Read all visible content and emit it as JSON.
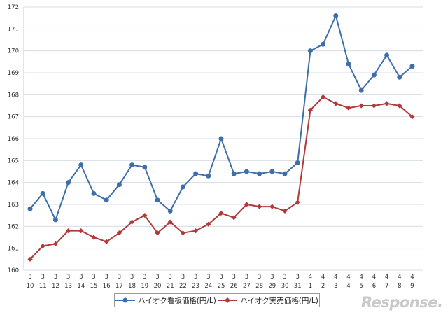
{
  "chart_data": {
    "type": "line",
    "title": "",
    "xlabel": "",
    "ylabel": "",
    "ylim": [
      160,
      172
    ],
    "yticks": [
      160,
      161,
      162,
      163,
      164,
      165,
      166,
      167,
      168,
      169,
      170,
      171,
      172
    ],
    "grid": true,
    "legend_position": "bottom",
    "categories": [
      {
        "month": "3",
        "day": "10"
      },
      {
        "month": "3",
        "day": "11"
      },
      {
        "month": "3",
        "day": "12"
      },
      {
        "month": "3",
        "day": "13"
      },
      {
        "month": "3",
        "day": "14"
      },
      {
        "month": "3",
        "day": "15"
      },
      {
        "month": "3",
        "day": "16"
      },
      {
        "month": "3",
        "day": "17"
      },
      {
        "month": "3",
        "day": "18"
      },
      {
        "month": "3",
        "day": "19"
      },
      {
        "month": "3",
        "day": "20"
      },
      {
        "month": "3",
        "day": "21"
      },
      {
        "month": "3",
        "day": "22"
      },
      {
        "month": "3",
        "day": "23"
      },
      {
        "month": "3",
        "day": "24"
      },
      {
        "month": "3",
        "day": "25"
      },
      {
        "month": "3",
        "day": "26"
      },
      {
        "month": "3",
        "day": "27"
      },
      {
        "month": "3",
        "day": "28"
      },
      {
        "month": "3",
        "day": "29"
      },
      {
        "month": "3",
        "day": "30"
      },
      {
        "month": "3",
        "day": "31"
      },
      {
        "month": "4",
        "day": "1"
      },
      {
        "month": "4",
        "day": "2"
      },
      {
        "month": "4",
        "day": "3"
      },
      {
        "month": "4",
        "day": "4"
      },
      {
        "month": "4",
        "day": "5"
      },
      {
        "month": "4",
        "day": "6"
      },
      {
        "month": "4",
        "day": "7"
      },
      {
        "month": "4",
        "day": "8"
      },
      {
        "month": "4",
        "day": "9"
      }
    ],
    "series": [
      {
        "name": "ハイオク看板価格(円/L)",
        "color": "#3f6fa8",
        "marker": "circle",
        "values": [
          162.8,
          163.5,
          162.3,
          164.0,
          164.8,
          163.5,
          163.2,
          163.9,
          164.8,
          164.7,
          163.2,
          162.7,
          163.8,
          164.4,
          164.3,
          166.0,
          164.4,
          164.5,
          164.4,
          164.5,
          164.4,
          164.9,
          170.0,
          170.3,
          171.6,
          169.4,
          168.2,
          168.9,
          169.8,
          168.8,
          169.3
        ]
      },
      {
        "name": "ハイオク実売価格(円/L)",
        "color": "#b03a3a",
        "marker": "diamond",
        "values": [
          160.5,
          161.1,
          161.2,
          161.8,
          161.8,
          161.5,
          161.3,
          161.7,
          162.2,
          162.5,
          161.7,
          162.2,
          161.7,
          161.8,
          162.1,
          162.6,
          162.4,
          163.0,
          162.9,
          162.9,
          162.7,
          163.1,
          167.3,
          167.9,
          167.6,
          167.4,
          167.5,
          167.5,
          167.6,
          167.5,
          167.0
        ]
      }
    ]
  },
  "watermark": "Response."
}
